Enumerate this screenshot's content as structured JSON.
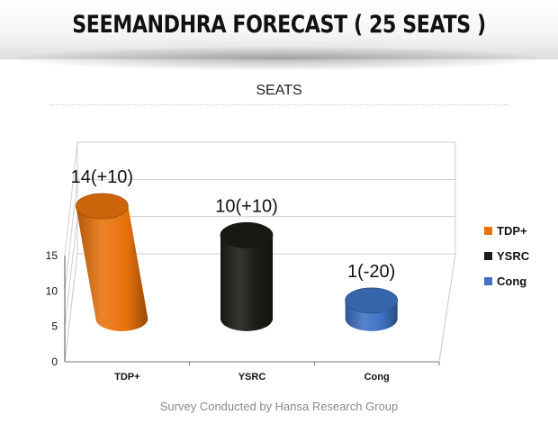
{
  "banner": {
    "title": "SEEMANDHRA FORECAST ( 25 SEATS )"
  },
  "footer": {
    "credit": "Survey Conducted by Hansa Research Group"
  },
  "chart_data": {
    "type": "bar",
    "style": "3d-cylinder",
    "title": "SEATS",
    "categories": [
      "TDP+",
      "YSRC",
      "Cong"
    ],
    "values": [
      14,
      10,
      1
    ],
    "data_labels": [
      "14(+10)",
      "10(+10)",
      "1(-20)"
    ],
    "colors": [
      "#e8720c",
      "#1c1c16",
      "#3f73c4"
    ],
    "legend": {
      "position": "right",
      "entries": [
        "TDP+",
        "YSRC",
        "Cong"
      ]
    },
    "yticks": [
      0,
      5,
      10,
      15
    ],
    "ylim": [
      0,
      15
    ],
    "grid": true
  }
}
